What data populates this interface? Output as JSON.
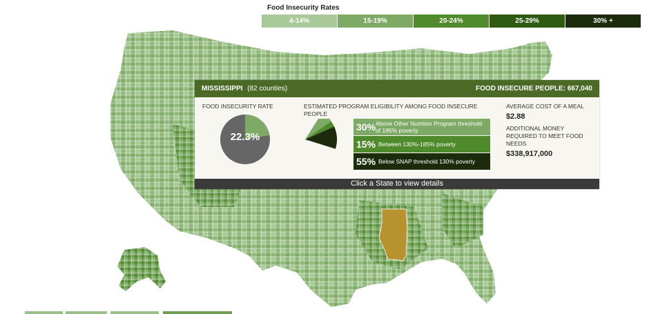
{
  "legend": {
    "title": "Food Insecurity Rates",
    "items": [
      {
        "label": "4-14%",
        "color": "#a9c99a"
      },
      {
        "label": "15-19%",
        "color": "#7eaa66"
      },
      {
        "label": "20-24%",
        "color": "#4f8a2c"
      },
      {
        "label": "25-29%",
        "color": "#2f5a12"
      },
      {
        "label": "30% +",
        "color": "#1b2b0c"
      }
    ]
  },
  "panel": {
    "state": "MISSISSIPPI",
    "counties": "(82 counties)",
    "people_label": "FOOD INSECURE PEOPLE: 667,040",
    "rate_label": "FOOD INSECURITY RATE",
    "rate_value": "22.3%",
    "rate_fraction": 0.223,
    "eligibility_label": "ESTIMATED PROGRAM ELIGIBILITY AMONG FOOD INSECURE PEOPLE",
    "eligibility": [
      {
        "pct": "30%",
        "desc": "Above Other Nutrition Program threshold of 185% poverty",
        "color": "#7eaa66",
        "value": 30
      },
      {
        "pct": "15%",
        "desc": "Between 130%-185% poverty",
        "color": "#4f8a2c",
        "value": 15
      },
      {
        "pct": "55%",
        "desc": "Below SNAP threshold 130% poverty",
        "color": "#1b2b0c",
        "value": 55
      }
    ],
    "avg_cost_label": "AVERAGE COST OF A MEAL",
    "avg_cost_value": "$2.88",
    "additional_label": "ADDITIONAL MONEY REQUIRED TO MEET FOOD NEEDS",
    "additional_value": "$338,917,000",
    "footer": "Click a State to view details"
  },
  "colors": {
    "header": "#4b6a26",
    "highlight_state": "#b8922e",
    "pie_rest": "#666666"
  }
}
